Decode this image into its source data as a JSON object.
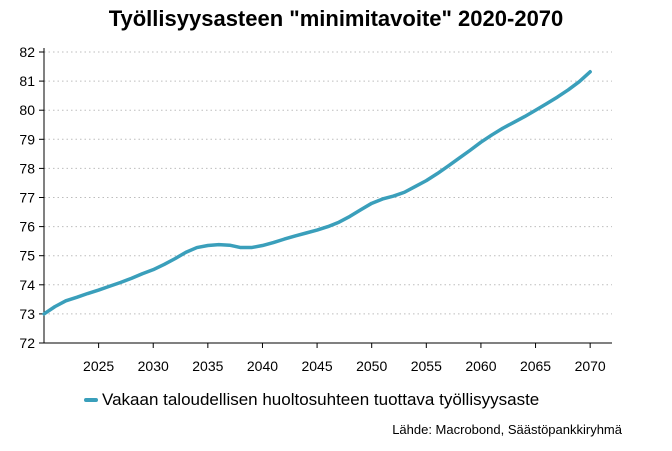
{
  "chart_data": {
    "type": "line",
    "title": "Työllisyysasteen \"minimitavoite\" 2020-2070",
    "xlabel": "",
    "ylabel": "",
    "xlim": [
      2020,
      2072
    ],
    "ylim": [
      72,
      82
    ],
    "x_ticks": [
      2025,
      2030,
      2035,
      2040,
      2045,
      2050,
      2055,
      2060,
      2065,
      2070
    ],
    "y_ticks": [
      72,
      73,
      74,
      75,
      76,
      77,
      78,
      79,
      80,
      81,
      82
    ],
    "grid": {
      "y": "dotted",
      "x": false
    },
    "legend_position": "bottom",
    "series": [
      {
        "name": "Vakaan taloudellisen huoltosuhteen tuottava työllisyysaste",
        "color": "#3a9fbb",
        "x": [
          2020,
          2021,
          2022,
          2023,
          2024,
          2025,
          2026,
          2027,
          2028,
          2029,
          2030,
          2031,
          2032,
          2033,
          2034,
          2035,
          2036,
          2037,
          2038,
          2039,
          2040,
          2041,
          2042,
          2043,
          2044,
          2045,
          2046,
          2047,
          2048,
          2049,
          2050,
          2051,
          2052,
          2053,
          2054,
          2055,
          2056,
          2057,
          2058,
          2059,
          2060,
          2061,
          2062,
          2063,
          2064,
          2065,
          2066,
          2067,
          2068,
          2069,
          2070
        ],
        "values": [
          73.0,
          73.25,
          73.45,
          73.57,
          73.7,
          73.82,
          73.95,
          74.08,
          74.22,
          74.38,
          74.52,
          74.7,
          74.9,
          75.12,
          75.28,
          75.35,
          75.38,
          75.36,
          75.28,
          75.28,
          75.35,
          75.45,
          75.57,
          75.68,
          75.78,
          75.88,
          76.0,
          76.15,
          76.35,
          76.58,
          76.8,
          76.95,
          77.05,
          77.18,
          77.38,
          77.58,
          77.82,
          78.08,
          78.35,
          78.62,
          78.9,
          79.15,
          79.38,
          79.58,
          79.78,
          80.0,
          80.22,
          80.45,
          80.7,
          80.98,
          81.32
        ]
      }
    ],
    "source": "Lähde: Macrobond, Säästöpankkiryhmä"
  }
}
